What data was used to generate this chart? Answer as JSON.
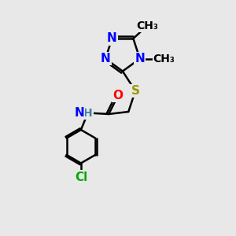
{
  "background_color": "#e8e8e8",
  "atom_colors": {
    "N": "#0000ff",
    "O": "#ff0000",
    "S": "#999900",
    "Cl": "#00aa00",
    "C": "#000000",
    "H": "#4080a0"
  },
  "bond_color": "#000000",
  "bond_width": 1.8,
  "font_size_atoms": 11,
  "font_size_methyl": 10
}
